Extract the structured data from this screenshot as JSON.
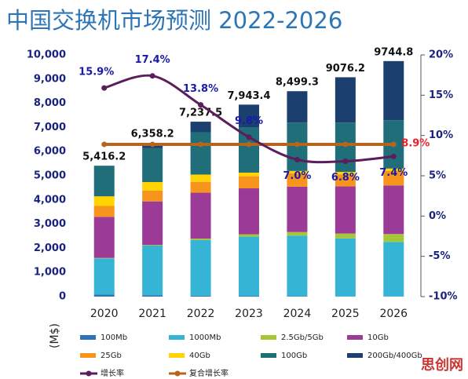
{
  "chart_data": {
    "type": "bar",
    "title": "中国交换机市场预测  2022-2026",
    "y_label": "(M$)",
    "watermark": "思创网",
    "categories": [
      "2020",
      "2021",
      "2022",
      "2023",
      "2024",
      "2025",
      "2026"
    ],
    "ylim": [
      0,
      10000
    ],
    "yticks": [
      0,
      {
        "value": 1000,
        "label": "1,000"
      },
      {
        "value": 2000,
        "label": "2,000"
      },
      {
        "value": 3000,
        "label": "3,000"
      },
      {
        "value": 4000,
        "label": "4,000"
      },
      {
        "value": 5000,
        "label": "5,000"
      },
      {
        "value": 6000,
        "label": "6,000"
      },
      {
        "value": 7000,
        "label": "7,000"
      },
      {
        "value": 8000,
        "label": "8,000"
      },
      {
        "value": 9000,
        "label": "9,000"
      },
      {
        "value": 10000,
        "label": "10,000"
      }
    ],
    "y2lim": [
      -10,
      20
    ],
    "y2ticks": [
      {
        "value": -10,
        "label": "-10%"
      },
      {
        "value": -5,
        "label": "-5%"
      },
      {
        "value": 0,
        "label": "0%"
      },
      {
        "value": 5,
        "label": "5%"
      },
      {
        "value": 10,
        "label": "10%"
      },
      {
        "value": 15,
        "label": "15%"
      },
      {
        "value": 20,
        "label": "20%"
      }
    ],
    "stacked": true,
    "totals": [
      5416.2,
      6358.2,
      7237.5,
      7943.4,
      8499.3,
      9076.2,
      9744.8
    ],
    "total_labels": [
      "5,416.2",
      "6,358.2",
      "7,237.5",
      "7,943.4",
      "8,499.3",
      "9076.2",
      "9744.8"
    ],
    "series": [
      {
        "name": "100Mb",
        "color": "#2e75b6",
        "values": [
          80,
          60,
          40,
          30,
          20,
          10,
          10
        ]
      },
      {
        "name": "1000Mb",
        "color": "#35b4d6",
        "values": [
          1500,
          2050,
          2300,
          2450,
          2500,
          2400,
          2250
        ]
      },
      {
        "name": "2.5Gb/5Gb",
        "color": "#a6c63a",
        "values": [
          20,
          30,
          60,
          100,
          150,
          200,
          330
        ]
      },
      {
        "name": "10Gb",
        "color": "#9c3a98",
        "values": [
          1700,
          1800,
          1900,
          1900,
          1880,
          1950,
          2010
        ]
      },
      {
        "name": "25Gb",
        "color": "#f7941d",
        "values": [
          450,
          450,
          450,
          500,
          550,
          500,
          600
        ]
      },
      {
        "name": "40Gb",
        "color": "#ffd400",
        "values": [
          400,
          350,
          300,
          150,
          100,
          100,
          100
        ]
      },
      {
        "name": "100Gb",
        "color": "#1f6e7a",
        "values": [
          1266.2,
          1400,
          1750,
          1870,
          2000,
          2040,
          2000
        ]
      },
      {
        "name": "200Gb/400Gb",
        "color": "#1b3f6e",
        "values": [
          0,
          218.2,
          437.5,
          943.4,
          1299.3,
          1876.2,
          2444.8
        ]
      },
      {
        "name": "增长率",
        "type": "line",
        "axis": "y2",
        "color": "#5b1d5b",
        "values": [
          15.9,
          17.4,
          13.8,
          9.8,
          7.0,
          6.8,
          7.4
        ],
        "value_labels": [
          "15.9%",
          "17.4%",
          "13.8%",
          "9.8%",
          "7.0%",
          "6.8%",
          "7.4%"
        ]
      },
      {
        "name": "复合增长率",
        "type": "line",
        "axis": "y2",
        "color": "#b5651d",
        "values": [
          8.9,
          8.9,
          8.9,
          8.9,
          8.9,
          8.9,
          8.9
        ],
        "value_labels": [
          null,
          null,
          null,
          null,
          null,
          null,
          "8.9%"
        ]
      }
    ]
  }
}
